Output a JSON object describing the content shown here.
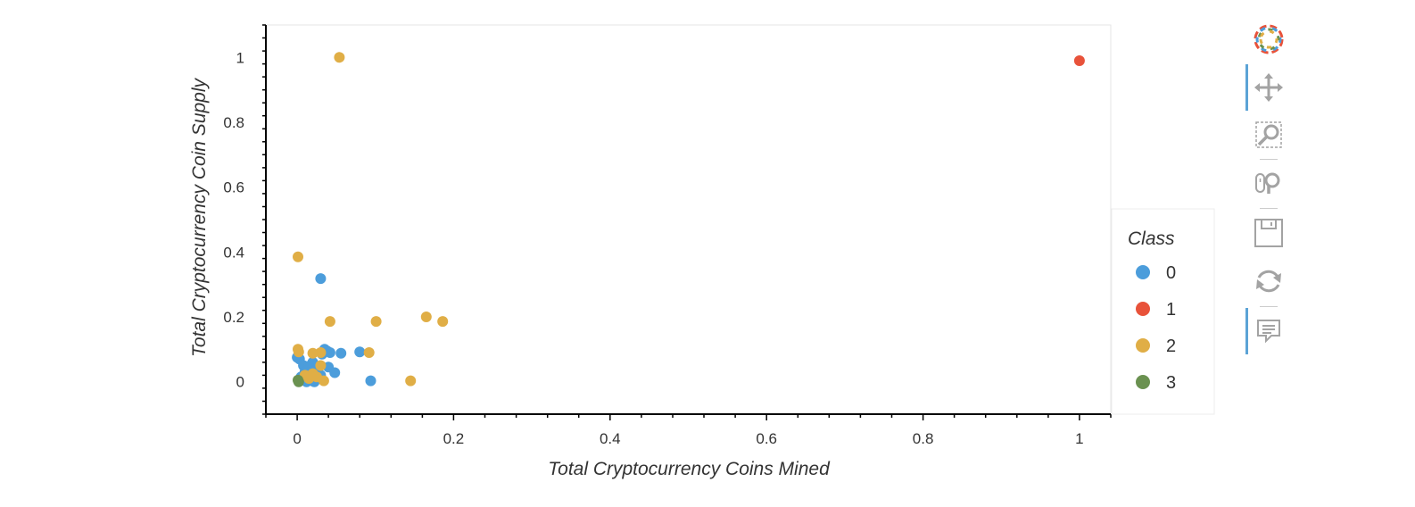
{
  "colors": {
    "class_0": "#4c9ddb",
    "class_1": "#e8523a",
    "class_2": "#e0ae46",
    "class_3": "#6a9150",
    "tool_icon": "#a3a3a3",
    "active_tool_bar": "#5ba3d6"
  },
  "toolbar": {
    "logo": "bokeh-logo-icon",
    "tools": [
      {
        "name": "pan-tool",
        "icon": "move-arrows-icon",
        "active": true
      },
      {
        "name": "box-zoom-tool",
        "icon": "box-zoom-icon",
        "active": false
      },
      {
        "name": "wheel-zoom-tool",
        "icon": "wheel-zoom-icon",
        "active": false
      },
      {
        "name": "save-tool",
        "icon": "save-icon",
        "active": false
      },
      {
        "name": "reset-tool",
        "icon": "reset-icon",
        "active": false
      },
      {
        "name": "hover-tool",
        "icon": "hover-comment-icon",
        "active": true
      }
    ]
  },
  "chart_data": {
    "type": "scatter",
    "title": "",
    "xlabel": "Total Cryptocurrency Coins Mined",
    "ylabel": "Total Cryptocurrency Coin Supply",
    "xlim": [
      -0.04,
      1.04
    ],
    "ylim": [
      -0.1,
      1.1
    ],
    "x_ticks": [
      0,
      0.2,
      0.4,
      0.6,
      0.8,
      1
    ],
    "x_tick_labels": [
      "0",
      "0.2",
      "0.4",
      "0.6",
      "0.8",
      "1"
    ],
    "y_ticks": [
      0,
      0.2,
      0.4,
      0.6,
      0.8,
      1
    ],
    "y_tick_labels": [
      "0",
      "0.2",
      "0.4",
      "0.6",
      "0.8",
      "1"
    ],
    "grid": false,
    "legend": {
      "title": "Class",
      "placement": "right"
    },
    "series": [
      {
        "name": "0",
        "color": "#4c9ddb",
        "points": [
          [
            0.0,
            0.075
          ],
          [
            0.003,
            0.07
          ],
          [
            0.008,
            0.05
          ],
          [
            0.015,
            0.048
          ],
          [
            0.02,
            0.06
          ],
          [
            0.025,
            0.04
          ],
          [
            0.03,
            0.318
          ],
          [
            0.032,
            0.085
          ],
          [
            0.035,
            0.1
          ],
          [
            0.038,
            0.095
          ],
          [
            0.042,
            0.09
          ],
          [
            0.04,
            0.045
          ],
          [
            0.048,
            0.028
          ],
          [
            0.056,
            0.088
          ],
          [
            0.08,
            0.092
          ],
          [
            0.094,
            0.003
          ],
          [
            0.01,
            0.03
          ],
          [
            0.012,
            0.0
          ],
          [
            0.02,
            0.002
          ],
          [
            0.025,
            0.015
          ],
          [
            0.03,
            0.02
          ],
          [
            0.022,
            0.0
          ],
          [
            0.015,
            0.01
          ],
          [
            0.005,
            0.015
          ],
          [
            0.018,
            0.03
          ]
        ]
      },
      {
        "name": "1",
        "color": "#e8523a",
        "points": [
          [
            1.0,
            0.99
          ]
        ]
      },
      {
        "name": "2",
        "color": "#e0ae46",
        "points": [
          [
            0.054,
            1.0
          ],
          [
            0.001,
            0.385
          ],
          [
            0.042,
            0.186
          ],
          [
            0.101,
            0.186
          ],
          [
            0.165,
            0.2
          ],
          [
            0.186,
            0.186
          ],
          [
            0.001,
            0.1
          ],
          [
            0.002,
            0.092
          ],
          [
            0.02,
            0.088
          ],
          [
            0.03,
            0.09
          ],
          [
            0.092,
            0.09
          ],
          [
            0.03,
            0.05
          ],
          [
            0.145,
            0.003
          ],
          [
            0.034,
            0.003
          ],
          [
            0.01,
            0.02
          ],
          [
            0.02,
            0.025
          ],
          [
            0.025,
            0.015
          ],
          [
            0.015,
            0.01
          ]
        ]
      },
      {
        "name": "3",
        "color": "#6a9150",
        "points": [
          [
            0.001,
            0.005
          ],
          [
            0.002,
            0.0
          ]
        ]
      }
    ]
  }
}
